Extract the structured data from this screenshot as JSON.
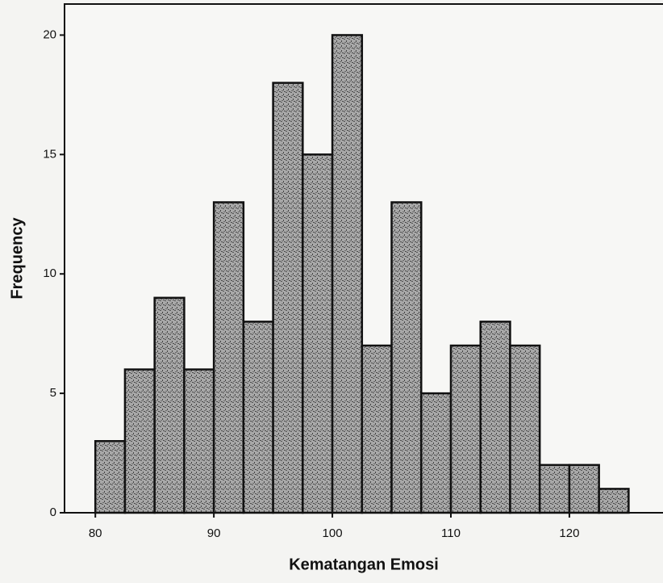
{
  "chart_data": {
    "type": "histogram",
    "xlabel": "Kematangan Emosi",
    "ylabel": "Frequency",
    "bins": [
      80,
      82.5,
      85,
      87.5,
      90,
      92.5,
      95,
      97.5,
      100,
      102.5,
      105,
      107.5,
      110,
      112.5,
      115,
      117.5,
      120,
      122.5,
      125
    ],
    "values": [
      3,
      6,
      9,
      6,
      13,
      8,
      18,
      15,
      20,
      7,
      13,
      5,
      7,
      8,
      7,
      2,
      2,
      1
    ],
    "color": "#9a9a9a",
    "xlim": [
      77.4,
      127.9
    ],
    "xticks": [
      80,
      90,
      100,
      110,
      120
    ],
    "ylim": [
      0,
      21.3
    ],
    "yticks": [
      0,
      5,
      10,
      15,
      20
    ]
  }
}
